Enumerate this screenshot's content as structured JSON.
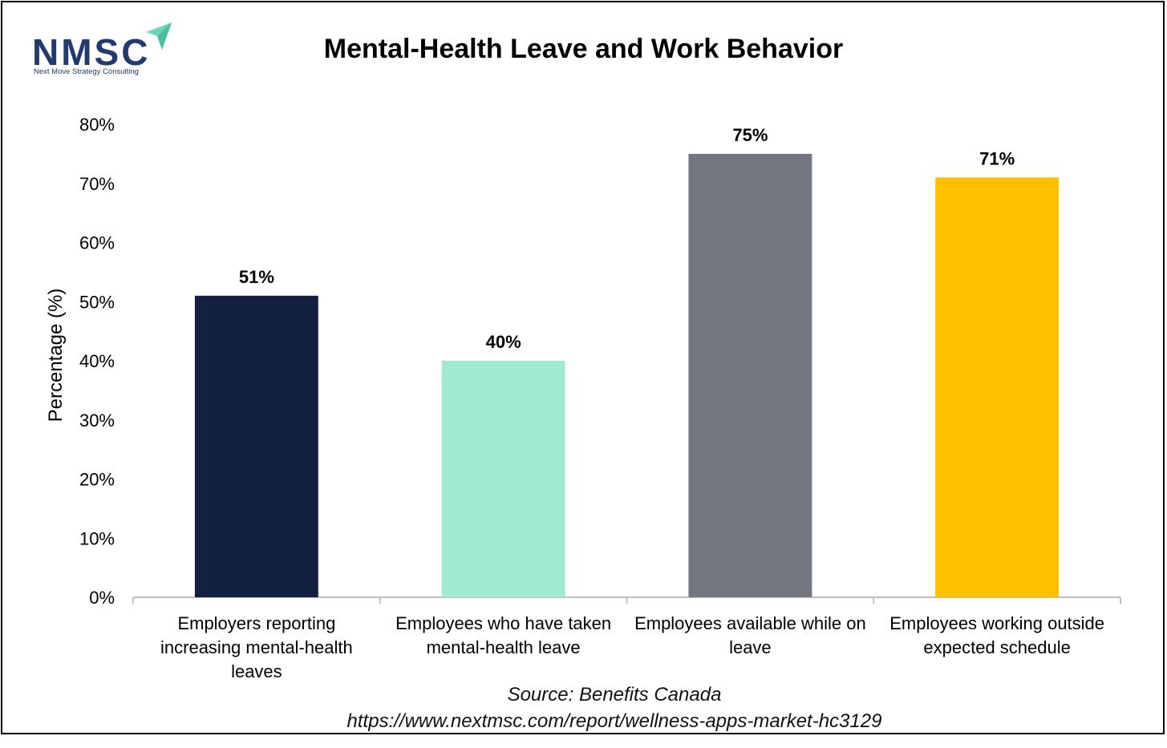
{
  "logo": {
    "name": "NMSC",
    "tagline": "Next Move Strategy Consulting",
    "accent_color": "#6ed6b8"
  },
  "chart_data": {
    "type": "bar",
    "title": "Mental-Health Leave and Work Behavior",
    "ylabel": "Percentage (%)",
    "xlabel": "",
    "ylim": [
      0,
      80
    ],
    "yticks": [
      "0%",
      "10%",
      "20%",
      "30%",
      "40%",
      "50%",
      "60%",
      "70%",
      "80%"
    ],
    "grid": false,
    "categories": [
      [
        "Employers reporting",
        "increasing mental-health",
        "leaves"
      ],
      [
        "Employees who have taken",
        "mental-health leave"
      ],
      [
        "Employees available while on",
        "leave"
      ],
      [
        "Employees working outside",
        "expected schedule"
      ]
    ],
    "values": [
      51,
      40,
      75,
      71
    ],
    "value_labels": [
      "51%",
      "40%",
      "75%",
      "71%"
    ],
    "colors": [
      "#132040",
      "#a0ebd0",
      "#72767e",
      "#ffc000"
    ]
  },
  "source": {
    "line1": "Source: Benefits Canada",
    "line2": "https://www.nextmsc.com/report/wellness-apps-market-hc3129"
  }
}
